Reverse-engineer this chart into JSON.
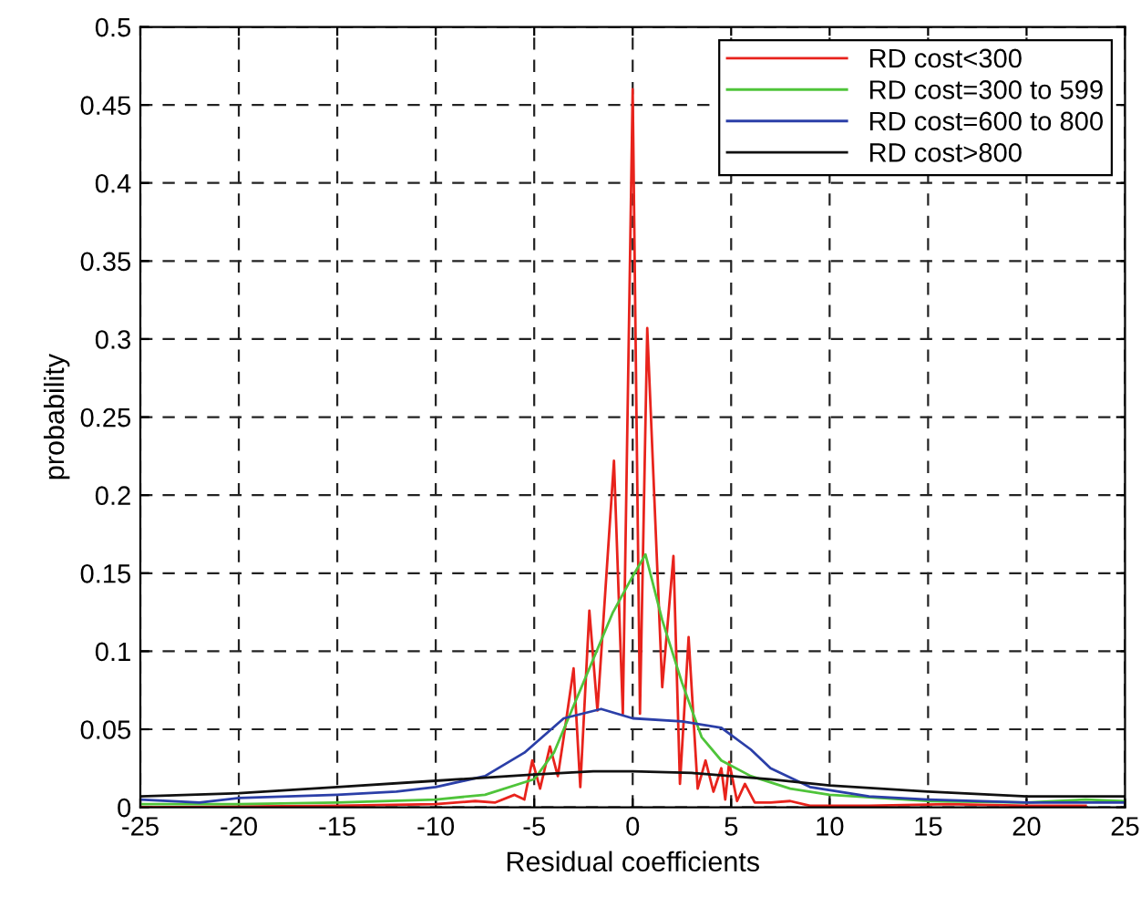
{
  "chart_data": {
    "type": "line",
    "xlabel": "Residual coefficients",
    "ylabel": "probability",
    "xlim": [
      -25,
      25
    ],
    "ylim": [
      0,
      0.5
    ],
    "xticks": [
      -25,
      -20,
      -15,
      -10,
      -5,
      0,
      5,
      10,
      15,
      20,
      25
    ],
    "yticks": [
      0,
      0.05,
      0.1,
      0.15,
      0.2,
      0.25,
      0.3,
      0.35,
      0.4,
      0.45,
      0.5
    ],
    "grid": true,
    "legend": "top right",
    "line_style": "solid",
    "marker": "none",
    "series": [
      {
        "name": "RD cost<300",
        "color": "#e8231c",
        "x": [
          -25,
          -15,
          -10,
          -8,
          -7,
          -6,
          -5.5,
          -5.1,
          -4.7,
          -4.2,
          -3.8,
          -3.5,
          -3.0,
          -2.66,
          -2.2,
          -1.79,
          -0.95,
          -0.5,
          0,
          0.37,
          0.74,
          1.5,
          2.07,
          2.4,
          2.84,
          3.3,
          3.7,
          4.1,
          4.5,
          4.7,
          4.9,
          5.3,
          5.7,
          6.2,
          7,
          8,
          9,
          12,
          16,
          20,
          23
        ],
        "values": [
          0,
          0.001,
          0.002,
          0.004,
          0.003,
          0.008,
          0.005,
          0.03,
          0.012,
          0.039,
          0.02,
          0.045,
          0.089,
          0.013,
          0.126,
          0.062,
          0.222,
          0.06,
          0.46,
          0.06,
          0.307,
          0.077,
          0.161,
          0.015,
          0.109,
          0.012,
          0.03,
          0.01,
          0.025,
          0.005,
          0.029,
          0.004,
          0.015,
          0.003,
          0.003,
          0.004,
          0.001,
          0.001,
          0.002,
          0.001,
          0.001
        ]
      },
      {
        "name": "RD cost=300 to 599",
        "color": "#4fc43a",
        "x": [
          -25,
          -20,
          -15,
          -10,
          -7.5,
          -5,
          -4,
          -3,
          -2,
          -1,
          0,
          0.65,
          1.5,
          2.5,
          3.5,
          4.5,
          6,
          8,
          10,
          15,
          20,
          23,
          25
        ],
        "values": [
          0.002,
          0.002,
          0.003,
          0.005,
          0.008,
          0.018,
          0.035,
          0.065,
          0.095,
          0.125,
          0.148,
          0.162,
          0.12,
          0.08,
          0.045,
          0.03,
          0.02,
          0.012,
          0.008,
          0.004,
          0.003,
          0.005,
          0.004
        ]
      },
      {
        "name": "RD cost=600 to 800",
        "color": "#2b3fa8",
        "x": [
          -25,
          -22,
          -20,
          -15,
          -12,
          -10,
          -7.5,
          -5.5,
          -3.5,
          -1.6,
          0,
          2.5,
          4.5,
          6,
          7,
          9,
          12,
          15,
          20,
          25
        ],
        "values": [
          0.005,
          0.003,
          0.006,
          0.008,
          0.01,
          0.013,
          0.02,
          0.035,
          0.057,
          0.063,
          0.057,
          0.055,
          0.051,
          0.037,
          0.025,
          0.013,
          0.007,
          0.005,
          0.003,
          0.003
        ]
      },
      {
        "name": "RD cost>800",
        "color": "#111111",
        "x": [
          -25,
          -20,
          -15,
          -10,
          -5,
          -2,
          0,
          3,
          5,
          7,
          10,
          15,
          20,
          25
        ],
        "values": [
          0.007,
          0.009,
          0.013,
          0.017,
          0.021,
          0.023,
          0.023,
          0.022,
          0.02,
          0.018,
          0.014,
          0.01,
          0.007,
          0.007
        ]
      }
    ]
  }
}
